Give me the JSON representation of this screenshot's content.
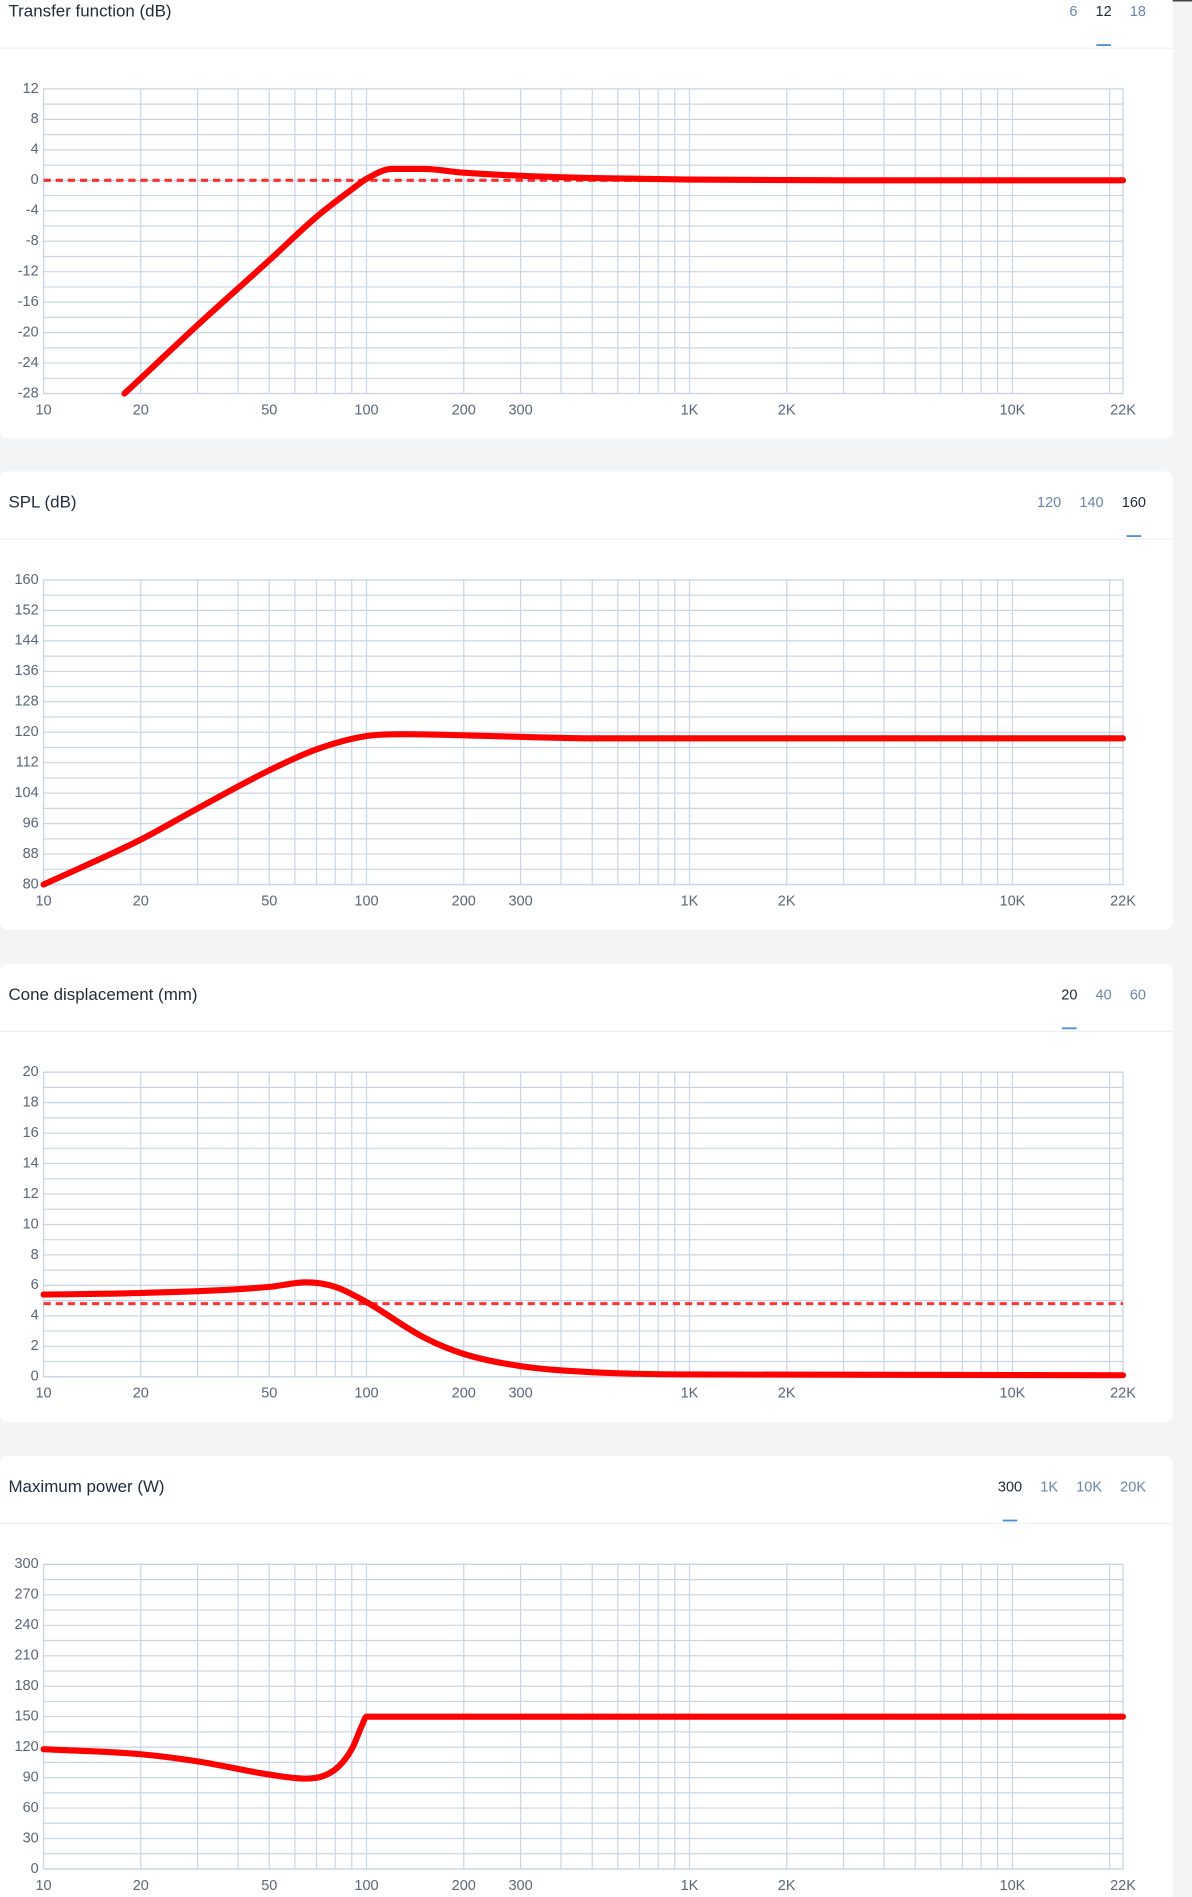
{
  "chart_data": [
    {
      "type": "line",
      "title": "Transfer function (dB)",
      "options": [
        "6",
        "12",
        "18"
      ],
      "selected": 1,
      "log_x": true,
      "xlim": [
        10,
        22000
      ],
      "xticks": [
        10,
        20,
        50,
        100,
        200,
        300,
        {
          "value": 1000,
          "label": "1K"
        },
        {
          "value": 2000,
          "label": "2K"
        },
        {
          "value": 10000,
          "label": "10K"
        },
        {
          "value": 22000,
          "label": "22K"
        }
      ],
      "x_minor_ticks": [
        30,
        40,
        60,
        70,
        80,
        90,
        400,
        500,
        600,
        700,
        800,
        900,
        3000,
        4000,
        5000,
        6000,
        7000,
        8000,
        9000,
        20000
      ],
      "ylim": [
        -28,
        12
      ],
      "yticks": [
        12,
        8,
        4,
        0,
        -4,
        -8,
        -12,
        -16,
        -20,
        -24,
        -28
      ],
      "y_minor_ticks": [
        10,
        6,
        2,
        -2,
        -6,
        -10,
        -14,
        -18,
        -22,
        -26
      ],
      "grid": true,
      "series": [
        {
          "color": "#ff0000",
          "dashed": false,
          "x": [
            17.8,
            20,
            30,
            50,
            70,
            90,
            100,
            120,
            150,
            200,
            300,
            500,
            1000,
            3000,
            22000
          ],
          "values": [
            -28,
            -26,
            -19,
            -10.5,
            -4.8,
            -1.2,
            0.2,
            1.5,
            1.5,
            1.0,
            0.6,
            0.3,
            0.1,
            0,
            0
          ]
        },
        {
          "color": "#ff0000",
          "dashed": true,
          "x": [
            10,
            22000
          ],
          "values": [
            0,
            0
          ]
        }
      ]
    },
    {
      "type": "line",
      "title": "SPL (dB)",
      "options": [
        "120",
        "140",
        "160"
      ],
      "selected": 2,
      "log_x": true,
      "xlim": [
        10,
        22000
      ],
      "xticks": [
        10,
        20,
        50,
        100,
        200,
        300,
        {
          "value": 1000,
          "label": "1K"
        },
        {
          "value": 2000,
          "label": "2K"
        },
        {
          "value": 10000,
          "label": "10K"
        },
        {
          "value": 22000,
          "label": "22K"
        }
      ],
      "x_minor_ticks": [
        30,
        40,
        60,
        70,
        80,
        90,
        400,
        500,
        600,
        700,
        800,
        900,
        3000,
        4000,
        5000,
        6000,
        7000,
        8000,
        9000,
        20000
      ],
      "ylim": [
        80,
        160
      ],
      "yticks": [
        160,
        152,
        144,
        136,
        128,
        120,
        112,
        104,
        96,
        88,
        80
      ],
      "y_minor_ticks": [
        156,
        148,
        140,
        132,
        124,
        116,
        108,
        100,
        92,
        84
      ],
      "grid": true,
      "series": [
        {
          "color": "#ff0000",
          "dashed": false,
          "x": [
            10,
            20,
            30,
            50,
            70,
            100,
            130,
            200,
            500,
            22000
          ],
          "values": [
            80,
            91.8,
            100,
            110,
            115.5,
            119,
            119.5,
            119.2,
            118.4,
            118.4
          ]
        }
      ]
    },
    {
      "type": "line",
      "title": "Cone displacement (mm)",
      "options": [
        "20",
        "40",
        "60"
      ],
      "selected": 0,
      "log_x": true,
      "xlim": [
        10,
        22000
      ],
      "xticks": [
        10,
        20,
        50,
        100,
        200,
        300,
        {
          "value": 1000,
          "label": "1K"
        },
        {
          "value": 2000,
          "label": "2K"
        },
        {
          "value": 10000,
          "label": "10K"
        },
        {
          "value": 22000,
          "label": "22K"
        }
      ],
      "x_minor_ticks": [
        30,
        40,
        60,
        70,
        80,
        90,
        400,
        500,
        600,
        700,
        800,
        900,
        3000,
        4000,
        5000,
        6000,
        7000,
        8000,
        9000,
        20000
      ],
      "ylim": [
        0,
        20
      ],
      "yticks": [
        20,
        18,
        16,
        14,
        12,
        10,
        8,
        6,
        4,
        2,
        0
      ],
      "y_minor_ticks": [
        19,
        17,
        15,
        13,
        11,
        9,
        7,
        5,
        3,
        1
      ],
      "grid": true,
      "series": [
        {
          "color": "#ff0000",
          "dashed": false,
          "x": [
            10,
            20,
            50,
            65,
            80,
            100,
            150,
            200,
            300,
            500,
            1000,
            22000
          ],
          "values": [
            5.4,
            5.5,
            5.9,
            6.2,
            5.9,
            4.9,
            2.6,
            1.5,
            0.7,
            0.3,
            0.15,
            0.1
          ]
        },
        {
          "color": "#ff0000",
          "dashed": true,
          "x": [
            10,
            22000
          ],
          "values": [
            4.8,
            4.8
          ]
        }
      ]
    },
    {
      "type": "line",
      "title": "Maximum power (W)",
      "options": [
        "300",
        "1K",
        "10K",
        "20K"
      ],
      "selected": 0,
      "log_x": true,
      "xlim": [
        10,
        22000
      ],
      "xticks": [
        10,
        20,
        50,
        100,
        200,
        300,
        {
          "value": 1000,
          "label": "1K"
        },
        {
          "value": 2000,
          "label": "2K"
        },
        {
          "value": 10000,
          "label": "10K"
        },
        {
          "value": 22000,
          "label": "22K"
        }
      ],
      "x_minor_ticks": [
        30,
        40,
        60,
        70,
        80,
        90,
        400,
        500,
        600,
        700,
        800,
        900,
        3000,
        4000,
        5000,
        6000,
        7000,
        8000,
        9000,
        20000
      ],
      "ylim": [
        0,
        300
      ],
      "yticks": [
        300,
        270,
        240,
        210,
        180,
        150,
        120,
        90,
        60,
        30,
        0
      ],
      "y_minor_ticks": [
        285,
        255,
        225,
        195,
        165,
        135,
        105,
        75,
        45,
        15
      ],
      "grid": true,
      "series": [
        {
          "color": "#ff0000",
          "dashed": false,
          "x": [
            10,
            20,
            30,
            50,
            65,
            80,
            90,
            97,
            100,
            22000
          ],
          "values": [
            118,
            113,
            106,
            93,
            89,
            98,
            118,
            142,
            150,
            150
          ]
        }
      ]
    }
  ]
}
